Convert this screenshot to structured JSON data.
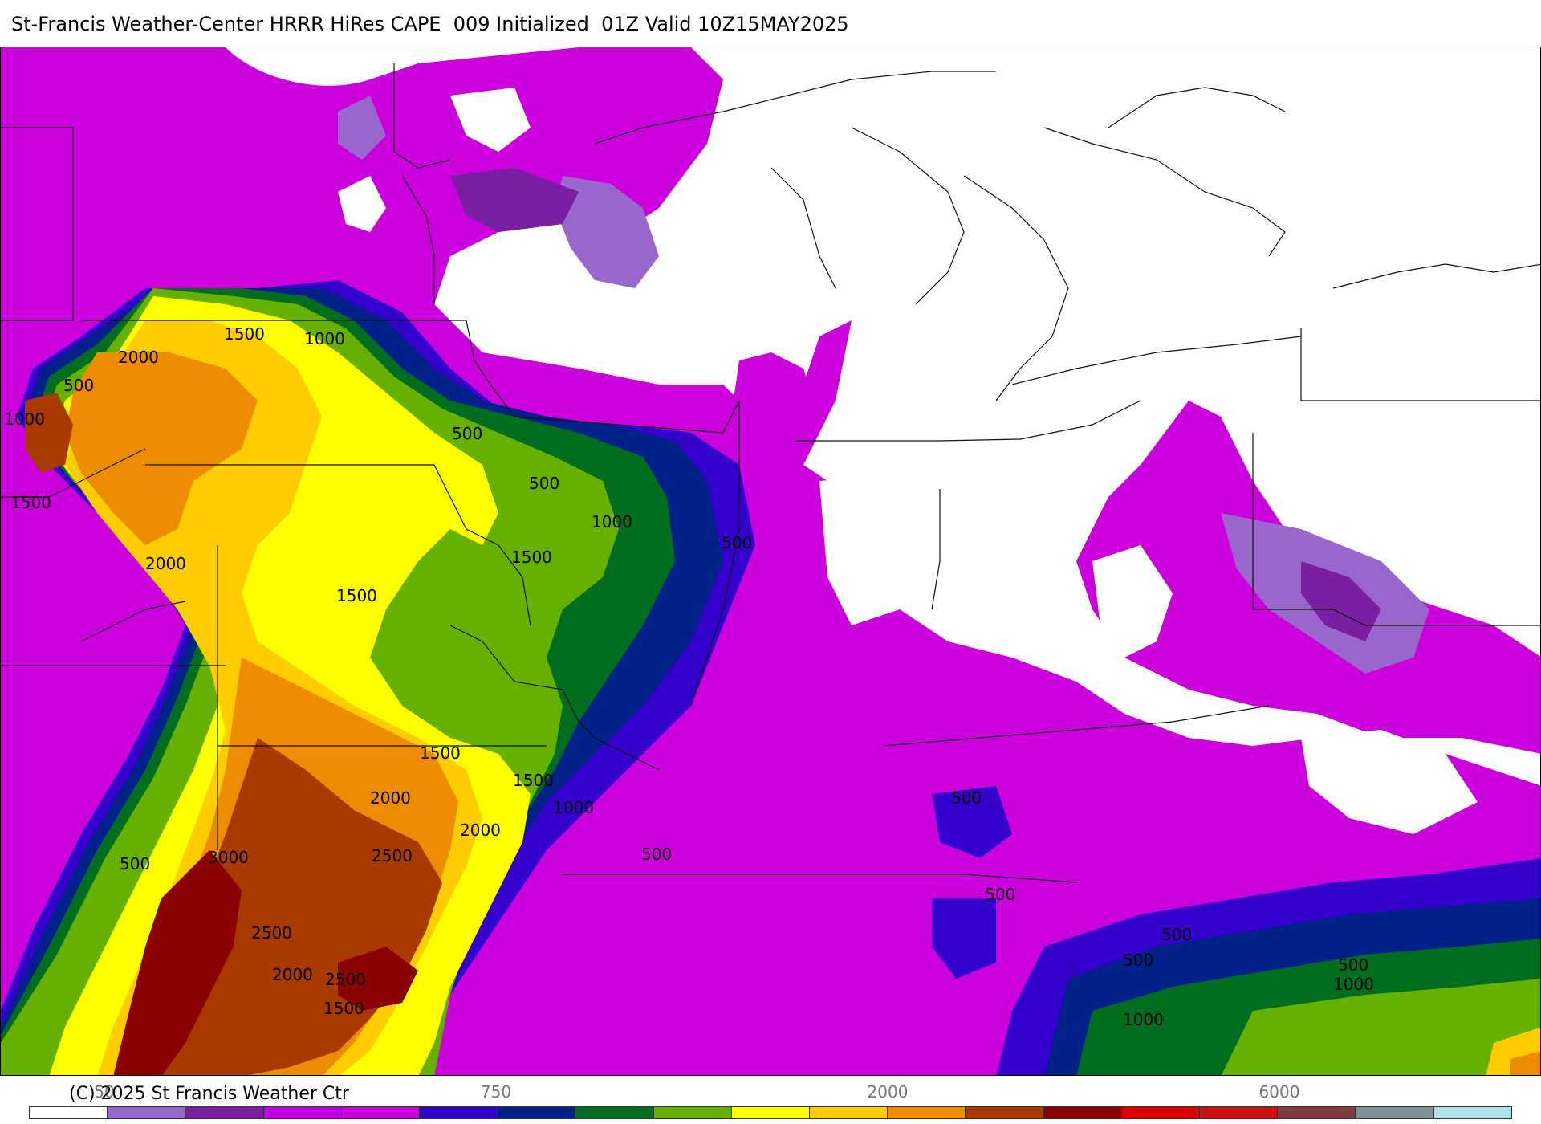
{
  "header": {
    "title": "St-Francis Weather-Center HRRR HiRes CAPE  009 Initialized  01Z Valid 10Z15MAY2025"
  },
  "footer": {
    "copyright": "(C) 2025 St Francis Weather Ctr"
  },
  "colorbar": {
    "tick_labels": [
      "50",
      "750",
      "2000",
      "6000"
    ],
    "colors": [
      "#ffffff",
      "#9966cc",
      "#7a1fa2",
      "#c000e0",
      "#cc00dd",
      "#3300cc",
      "#002288",
      "#006e1e",
      "#66b000",
      "#ffff00",
      "#ffcc00",
      "#ee8c00",
      "#a83a00",
      "#8b0000",
      "#dd0000",
      "#cc1111",
      "#7f3b3b",
      "#7e9296",
      "#b0e0e8"
    ]
  },
  "map": {
    "contour_labels": [
      "2000",
      "1500",
      "1000",
      "500",
      "1000",
      "1500",
      "500",
      "500",
      "1000",
      "500",
      "1500",
      "2000",
      "1500",
      "1500",
      "1500",
      "1000",
      "2000",
      "2000",
      "3000",
      "2500",
      "500",
      "500",
      "2500",
      "2000",
      "2500",
      "1500",
      "500",
      "500",
      "500",
      "500",
      "500",
      "1000",
      "1000"
    ]
  }
}
